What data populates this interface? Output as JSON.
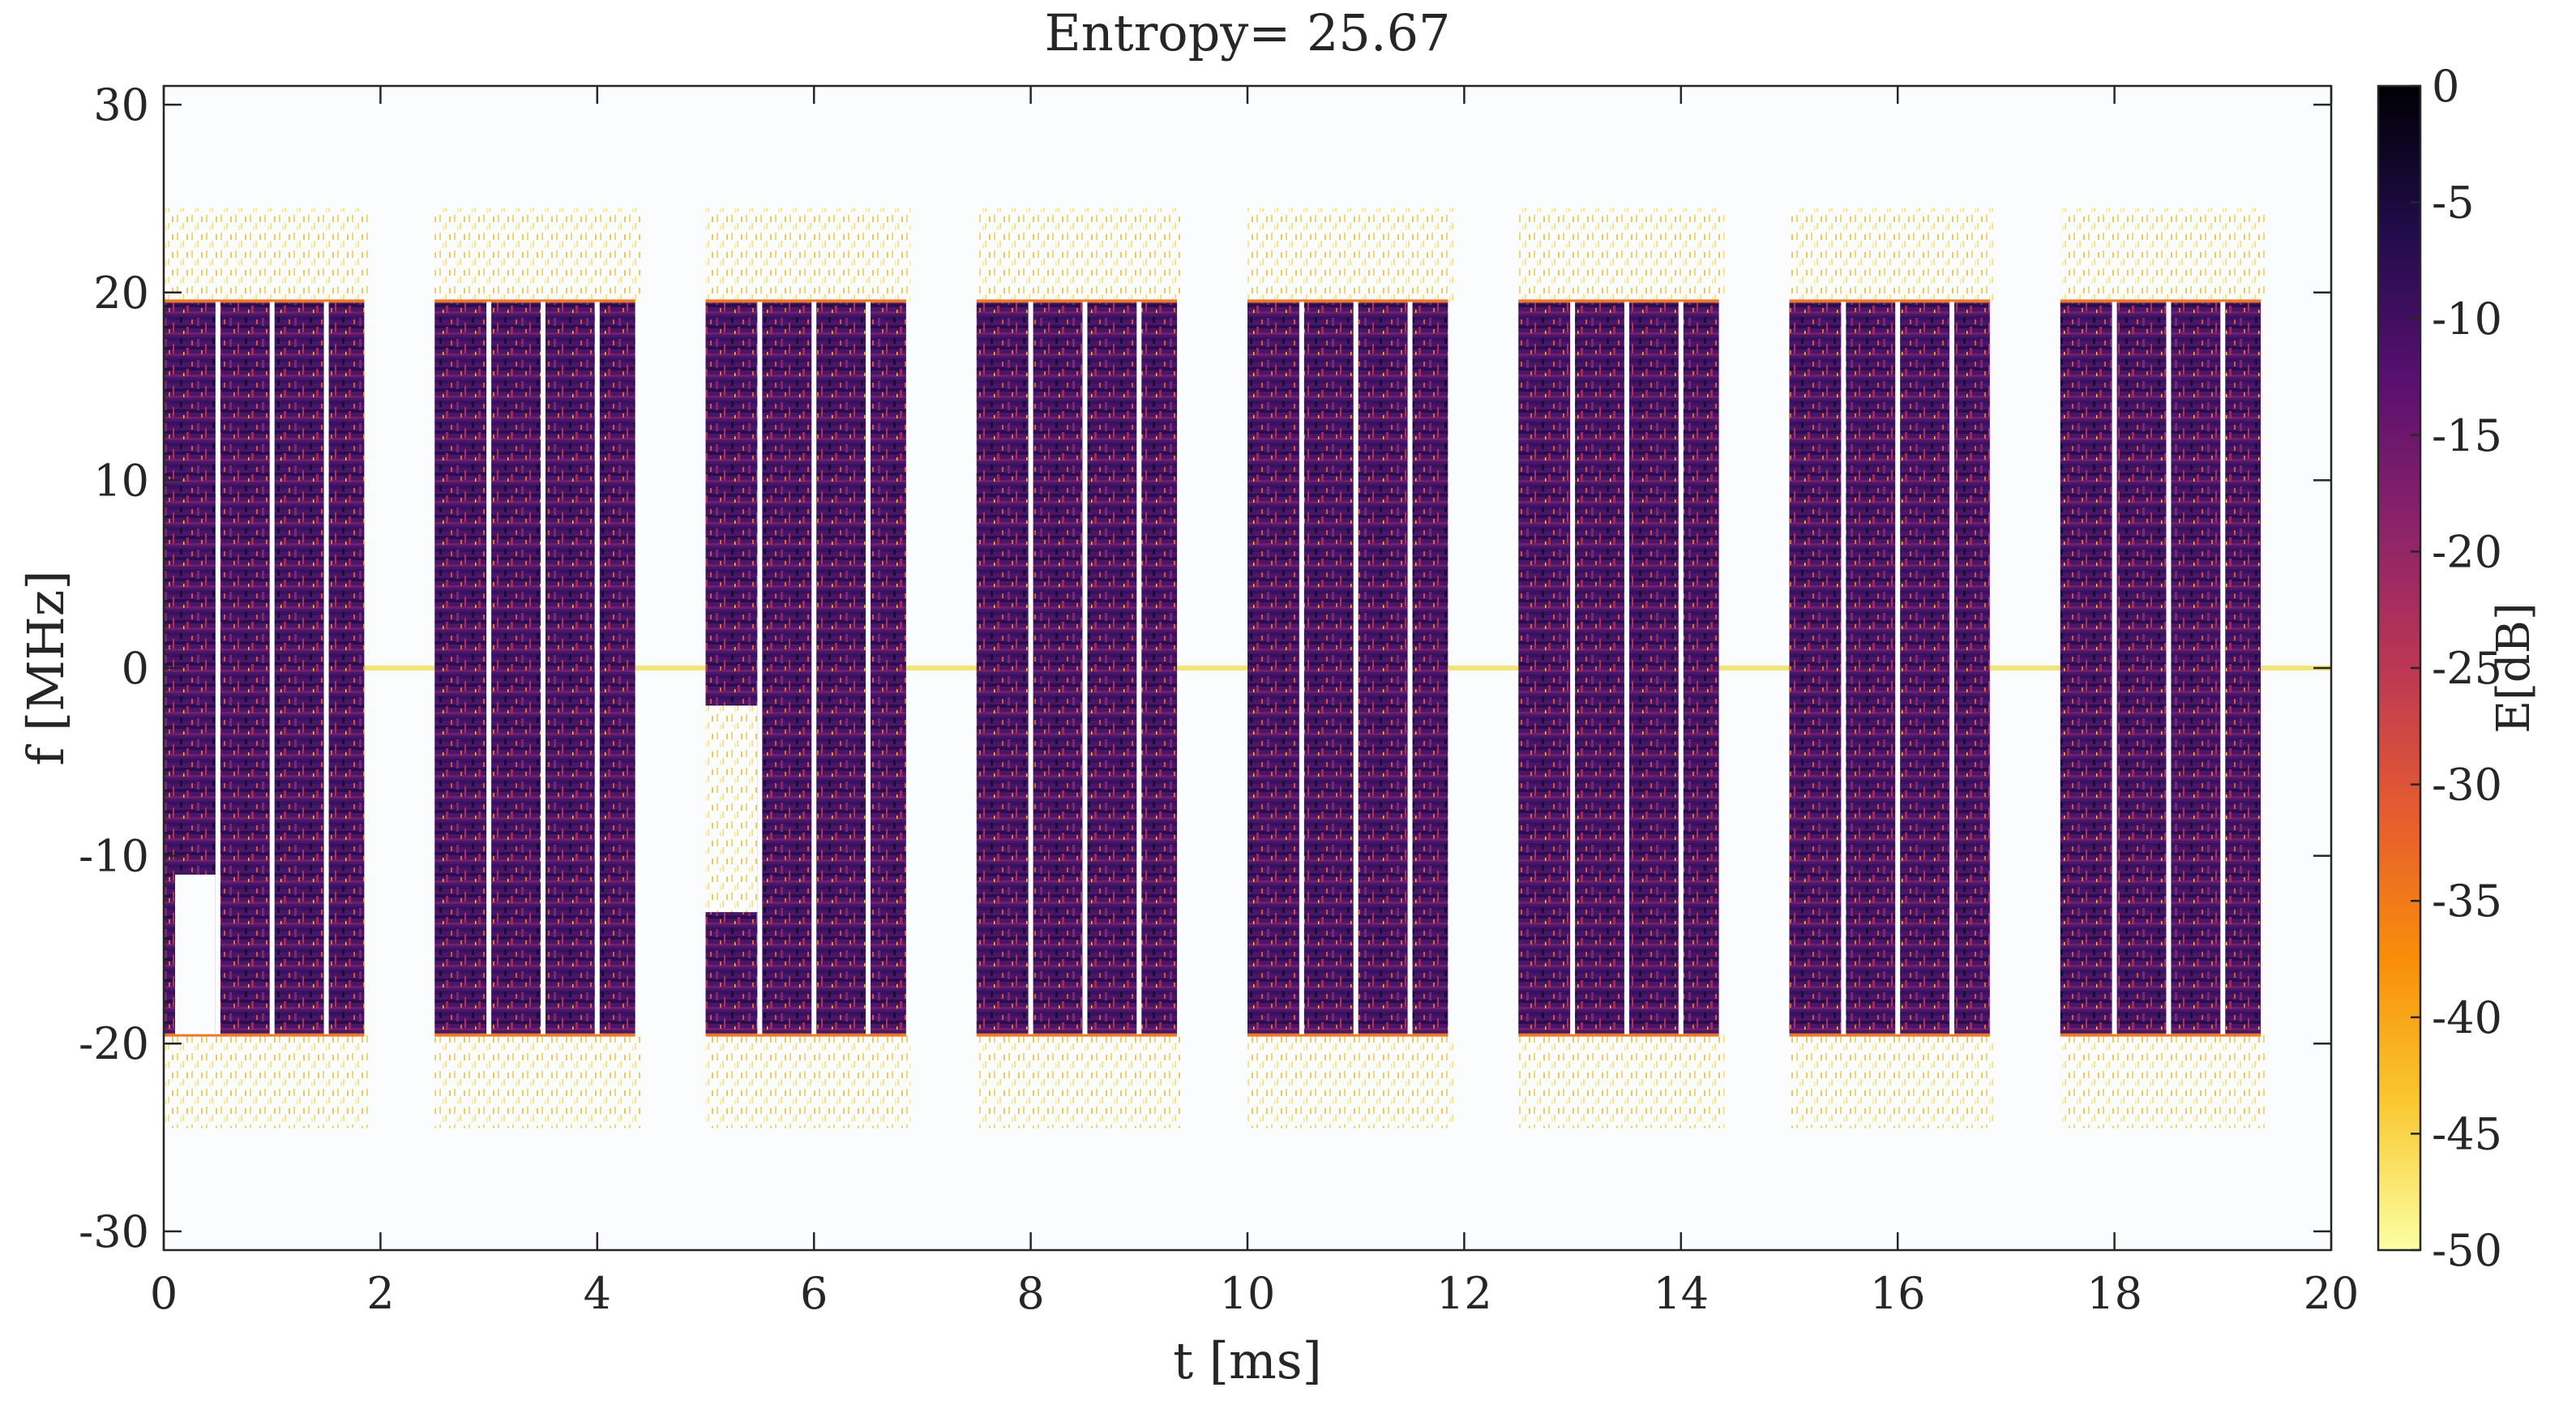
{
  "chart_data": {
    "type": "heatmap",
    "title": "Entropy= 25.67",
    "xlabel": "t [ms]",
    "ylabel": "f [MHz]",
    "colorbar_label": "E[dB]",
    "xlim": [
      0,
      20
    ],
    "ylim": [
      -31,
      31
    ],
    "clim": [
      -50,
      0
    ],
    "xticks": [
      0,
      2,
      4,
      6,
      8,
      10,
      12,
      14,
      16,
      18,
      20
    ],
    "yticks": [
      -30,
      -20,
      -10,
      0,
      10,
      20,
      30
    ],
    "cticks": [
      0,
      -5,
      -10,
      -15,
      -20,
      -25,
      -30,
      -35,
      -40,
      -45,
      -50
    ],
    "colormap": "inferno",
    "grid": false,
    "bursts": [
      {
        "t_start": 0.0,
        "t_end": 1.85,
        "f_band": [
          -19.5,
          19.5
        ],
        "gaps_ms": [
          0.5,
          1.0,
          1.5
        ],
        "notch": {
          "t": [
            0.0,
            0.5
          ],
          "f": [
            -19.5,
            -11
          ],
          "note": "partial"
        }
      },
      {
        "t_start": 2.5,
        "t_end": 4.35,
        "f_band": [
          -19.5,
          19.5
        ],
        "gaps_ms": [
          3.0,
          3.5,
          4.0
        ]
      },
      {
        "t_start": 5.0,
        "t_end": 6.85,
        "f_band": [
          -19.5,
          19.5
        ],
        "gaps_ms": [
          5.5,
          6.0,
          6.5
        ],
        "notch": {
          "t": [
            5.0,
            5.5
          ],
          "f": [
            -13,
            -2
          ],
          "note": "empty"
        }
      },
      {
        "t_start": 7.5,
        "t_end": 9.35,
        "f_band": [
          -19.5,
          19.5
        ],
        "gaps_ms": [
          8.0,
          8.5,
          9.0
        ]
      },
      {
        "t_start": 10.0,
        "t_end": 11.85,
        "f_band": [
          -19.5,
          19.5
        ],
        "gaps_ms": [
          10.5,
          11.0,
          11.5
        ]
      },
      {
        "t_start": 12.5,
        "t_end": 14.35,
        "f_band": [
          -19.5,
          19.5
        ],
        "gaps_ms": [
          13.0,
          13.5,
          14.0
        ]
      },
      {
        "t_start": 15.0,
        "t_end": 16.85,
        "f_band": [
          -19.5,
          19.5
        ],
        "gaps_ms": [
          15.5,
          16.0,
          16.5
        ]
      },
      {
        "t_start": 17.5,
        "t_end": 19.35,
        "f_band": [
          -19.5,
          19.5
        ],
        "gaps_ms": [
          18.0,
          18.5,
          19.0
        ]
      }
    ],
    "energy_levels_db": {
      "burst_core": -12,
      "sideband_noise": -46,
      "sideband_f_extent": 24.5,
      "dc_line_db": -45,
      "background_db": -50
    }
  },
  "colors": {
    "background": "#fbfcfd",
    "axis": "#262626",
    "dc_line": "#f1e478",
    "colormap_stops": [
      "#fcffa4",
      "#f9c932",
      "#f98e09",
      "#e55c30",
      "#bc3754",
      "#8a226a",
      "#57106e",
      "#210c4a",
      "#000004"
    ]
  }
}
